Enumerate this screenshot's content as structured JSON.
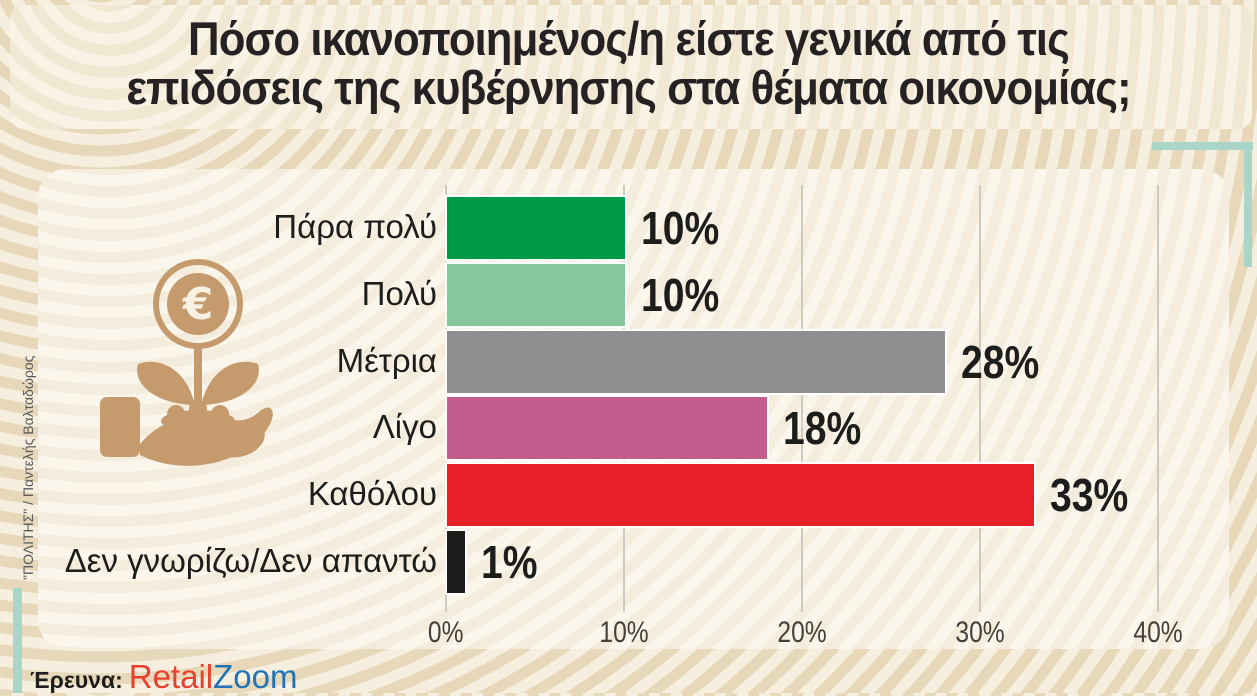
{
  "title": {
    "line1": "Πόσο ικανοποιημένος/η είστε γενικά από τις",
    "line2": "επιδόσεις της κυβέρνησης στα θέματα οικονομίας;"
  },
  "chart_data": {
    "type": "bar",
    "orientation": "horizontal",
    "title": "Πόσο ικανοποιημένος/η είστε γενικά από τις επιδόσεις της κυβέρνησης στα θέματα οικονομίας;",
    "categories": [
      "Πάρα πολύ",
      "Πολύ",
      "Μέτρια",
      "Λίγο",
      "Καθόλου",
      "Δεν γνωρίζω/Δεν απαντώ"
    ],
    "values": [
      10,
      10,
      28,
      18,
      33,
      1
    ],
    "value_labels": [
      "10%",
      "10%",
      "28%",
      "18%",
      "33%",
      "1%"
    ],
    "bar_colors": [
      "#009b48",
      "#86c79c",
      "#8e8e90",
      "#c25d8e",
      "#e71f26",
      "#1d1d1b"
    ],
    "xlabel": "",
    "ylabel": "",
    "xlim": [
      0,
      40
    ],
    "x_ticks": [
      "0%",
      "10%",
      "20%",
      "30%",
      "40%"
    ],
    "grid": true,
    "legend": false
  },
  "footer": {
    "survey_label": "Έρευνα:",
    "brand_part1": "Retail",
    "brand_part2": "Zoom"
  },
  "credit_vertical": "\"ΠΟΛΙΤΗΣ\" / Παντελής Βαλταδώρος",
  "icon": {
    "name": "hand-holding-euro-plant",
    "color": "#c59a6c",
    "symbol": "€"
  },
  "colors": {
    "background_stripe_dark": "#e7d8ba",
    "background_stripe_light": "#f6efdf",
    "panel_light": "#fbf6ec",
    "teal_accent": "#a9d6c9",
    "brand_red": "#e8402f",
    "brand_blue": "#2173b8",
    "text_dark": "#1d1d1b"
  }
}
